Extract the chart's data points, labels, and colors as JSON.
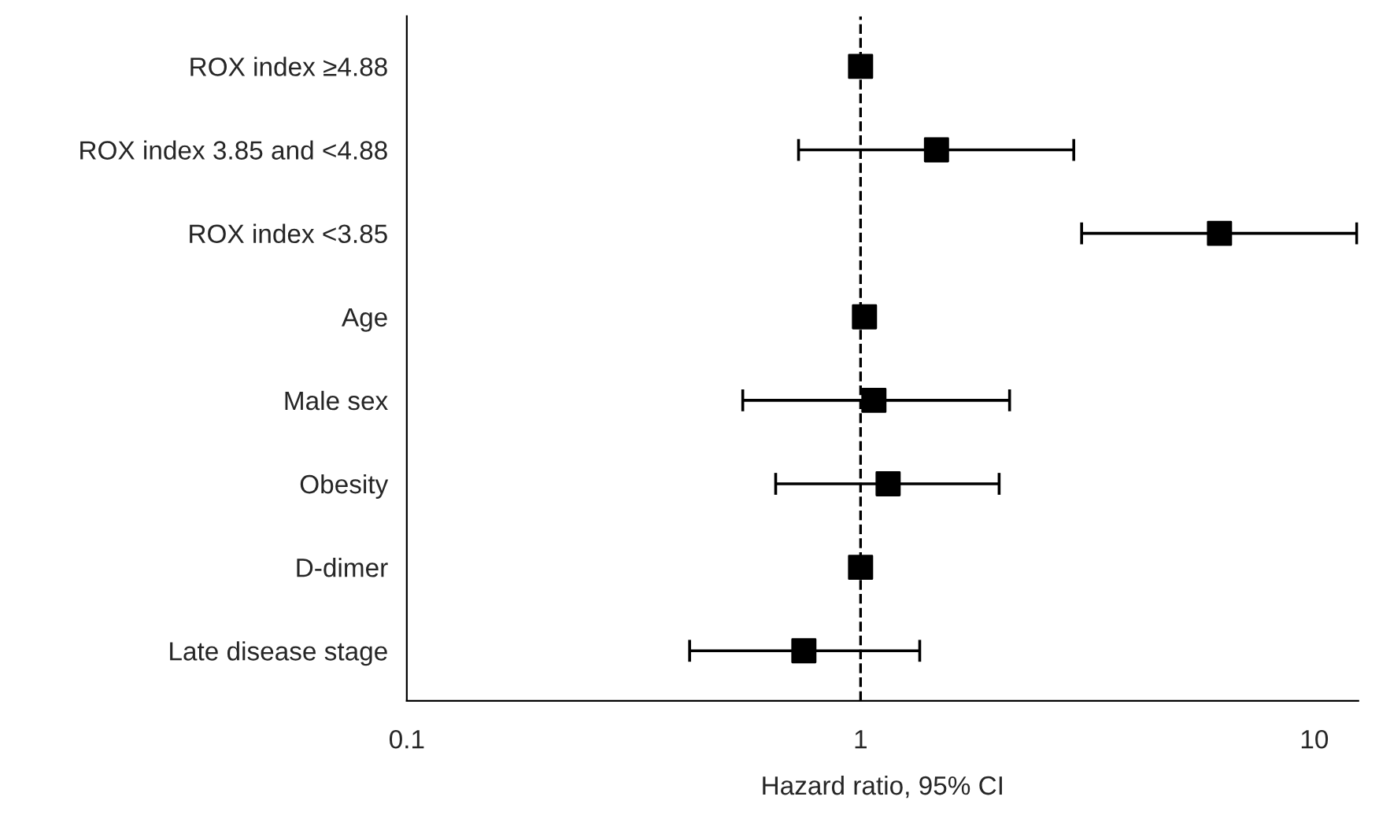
{
  "chart_data": {
    "type": "scatter",
    "orientation": "horizontal",
    "xlabel": "Hazard ratio, 95% CI",
    "categories": [
      "ROX index ≥4.88",
      "ROX index 3.85 and <4.88",
      "ROX index <3.85",
      "Age",
      "Male sex",
      "Obesity",
      "D-dimer",
      "Late disease stage"
    ],
    "values": [
      1.0,
      1.47,
      6.18,
      1.02,
      1.07,
      1.15,
      1.0,
      0.75
    ],
    "errors": [
      null,
      [
        0.73,
        2.95
      ],
      [
        3.07,
        12.4
      ],
      null,
      [
        0.55,
        2.13
      ],
      [
        0.65,
        2.02
      ],
      null,
      [
        0.42,
        1.35
      ]
    ],
    "colors": [
      "#000000",
      "#000000",
      "#000000",
      "#000000",
      "#000000",
      "#000000",
      "#000000",
      "#000000"
    ],
    "log": "x",
    "xlim": [
      0.1,
      12.5
    ],
    "xticks": [
      0.1,
      1,
      10
    ],
    "marker": "square",
    "grid": false,
    "legend": false,
    "ref_lines": [
      {
        "axis": "x",
        "value": 1,
        "line_style": "dashed",
        "color": "#000000"
      }
    ]
  }
}
